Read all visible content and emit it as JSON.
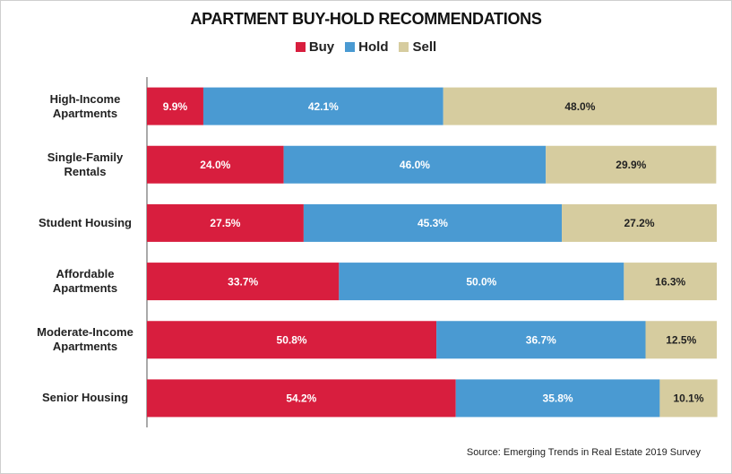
{
  "chart_data": {
    "type": "stacked-bar-horizontal",
    "title": "APARTMENT BUY-HOLD RECOMMENDATIONS",
    "categories": [
      "High-Income Apartments",
      "Single-Family Rentals",
      "Student Housing",
      "Affordable Apartments",
      "Moderate-Income Apartments",
      "Senior Housing"
    ],
    "series": [
      {
        "name": "Buy",
        "color": "#d81e3e",
        "values": [
          9.9,
          24.0,
          27.5,
          33.7,
          50.8,
          54.2
        ],
        "value_labels": [
          "9.9%",
          "24.0%",
          "27.5%",
          "33.7%",
          "50.8%",
          "54.2%"
        ]
      },
      {
        "name": "Hold",
        "color": "#4a9ad2",
        "values": [
          42.1,
          46.0,
          45.3,
          50.0,
          36.7,
          35.8
        ],
        "value_labels": [
          "42.1%",
          "46.0%",
          "45.3%",
          "50.0%",
          "36.7%",
          "35.8%"
        ]
      },
      {
        "name": "Sell",
        "color": "#d6cc9f",
        "values": [
          48.0,
          29.9,
          27.2,
          16.3,
          12.5,
          10.1
        ],
        "value_labels": [
          "48.0%",
          "29.9%",
          "27.2%",
          "16.3%",
          "12.5%",
          "10.1%"
        ]
      }
    ],
    "xlim": [
      0,
      100
    ],
    "source": "Source: Emerging  Trends in Real Estate 2019 Survey"
  }
}
